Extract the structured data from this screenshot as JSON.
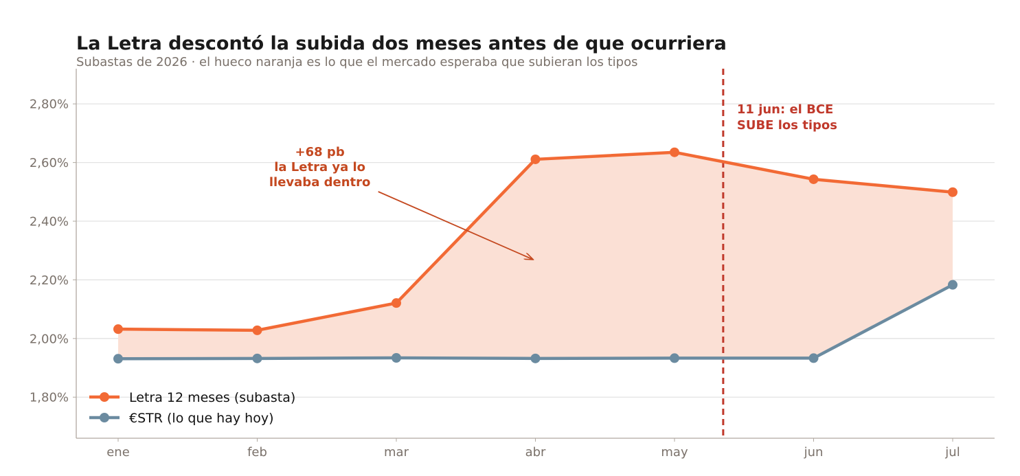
{
  "title": "La Letra descontó la subida dos meses antes de que ocurriera",
  "subtitle": "Subastas de 2026 · el hueco naranja es lo que el mercado esperaba que subieran los tipos",
  "colors": {
    "letra": "#f26a35",
    "estr": "#6b8ba0",
    "fill": "#fbe0d5",
    "event": "#c0392b",
    "annotation": "#c4481f",
    "axis_text": "#7a716a",
    "grid": "#e2e2e2"
  },
  "chart_data": {
    "type": "line",
    "categories": [
      "ene",
      "feb",
      "mar",
      "abr",
      "may",
      "jun",
      "jul"
    ],
    "series": [
      {
        "name": "Letra 12 meses (subasta)",
        "values": [
          2.032,
          2.028,
          2.121,
          2.611,
          2.635,
          2.543,
          2.499
        ]
      },
      {
        "name": "€STR (lo que hay hoy)",
        "values": [
          1.931,
          1.932,
          1.934,
          1.932,
          1.933,
          1.933,
          2.183
        ]
      }
    ],
    "yticks": [
      1.8,
      2.0,
      2.2,
      2.4,
      2.6,
      2.8
    ],
    "ytick_labels": [
      "1,80%",
      "2,00%",
      "2,20%",
      "2,40%",
      "2,60%",
      "2,80%"
    ],
    "ylim": [
      1.66,
      2.92
    ],
    "event_line": {
      "x": 4.35,
      "label_lines": [
        "11 jun: el BCE",
        "SUBE los tipos"
      ]
    },
    "annotation": {
      "label_lines": [
        "+68 pb",
        "la Letra ya lo",
        "llevaba dentro"
      ],
      "text_x": 1.45,
      "text_y": 2.56,
      "arrow_from_x": 1.87,
      "arrow_from_y": 2.5,
      "arrow_to_x": 3.0,
      "arrow_to_y": 2.27
    },
    "grid": true,
    "legend_position": "bottom-left",
    "legend": [
      "Letra 12 meses (subasta)",
      "€STR (lo que hay hoy)"
    ]
  }
}
